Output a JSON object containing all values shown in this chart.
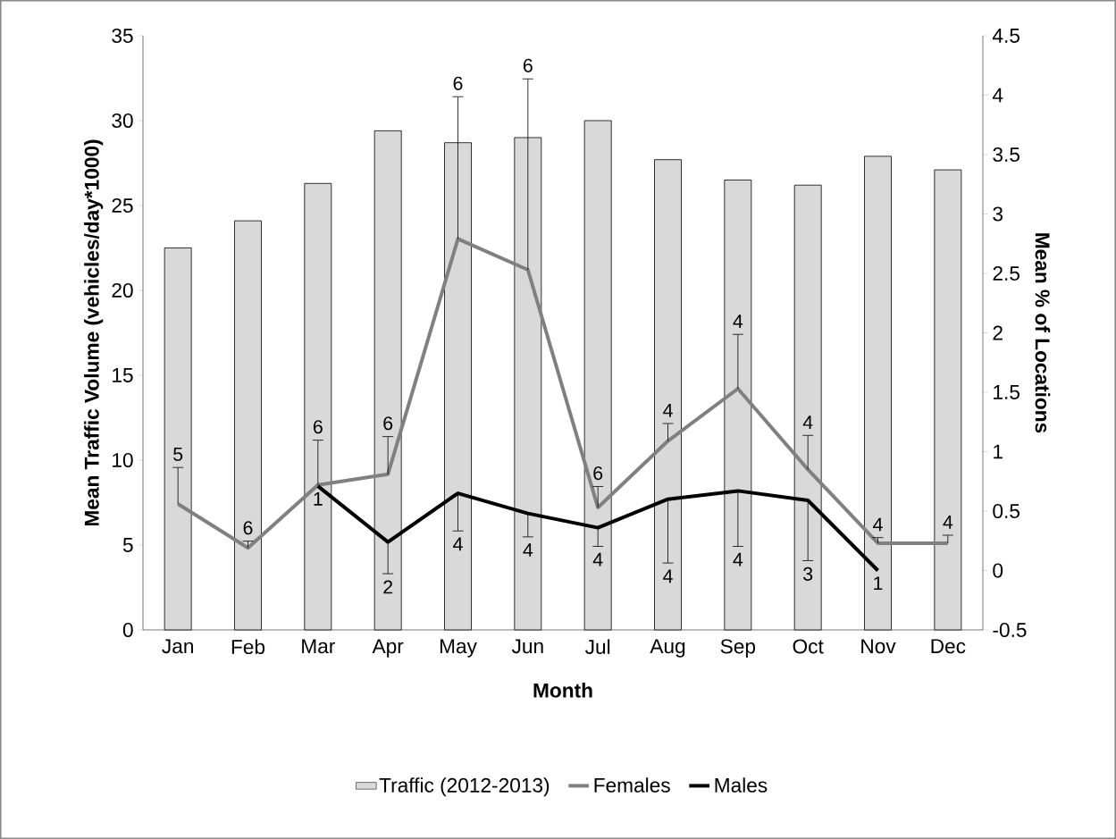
{
  "chart_data": {
    "type": "bar",
    "categories": [
      "Jan",
      "Feb",
      "Mar",
      "Apr",
      "May",
      "Jun",
      "Jul",
      "Aug",
      "Sep",
      "Oct",
      "Nov",
      "Dec"
    ],
    "xlabel": "Month",
    "ylabel": "Mean Traffic Volume (vehicles/day*1000)",
    "y2label": "Mean % of Locations",
    "ylim": [
      0,
      35
    ],
    "yticks": [
      0,
      5,
      10,
      15,
      20,
      25,
      30,
      35
    ],
    "y2lim": [
      -0.5,
      4.5
    ],
    "y2ticks": [
      -0.5,
      0,
      0.5,
      1,
      1.5,
      2,
      2.5,
      3,
      3.5,
      4,
      4.5
    ],
    "legend": "bottom",
    "series": [
      {
        "name": "Traffic (2012-2013)",
        "color": "#d9d9d9",
        "values": [
          22.5,
          24.1,
          26.3,
          29.4,
          28.7,
          29.0,
          30.0,
          27.7,
          26.5,
          26.2,
          27.9,
          27.1
        ]
      },
      {
        "name": "Females",
        "type": "line",
        "axis": "y2",
        "color": "#808080",
        "values": [
          0.56,
          0.19,
          0.72,
          0.81,
          2.79,
          2.53,
          0.53,
          1.09,
          1.53,
          0.85,
          0.23,
          0.23
        ],
        "errors": [
          [
            0.56,
            0.87
          ],
          [
            0.19,
            0.25
          ],
          [
            0.72,
            1.1
          ],
          [
            0.81,
            1.13
          ],
          [
            2.79,
            3.99
          ],
          [
            2.53,
            4.14
          ],
          [
            0.53,
            0.71
          ],
          [
            1.09,
            1.24
          ],
          [
            1.53,
            1.99
          ],
          [
            0.85,
            1.14
          ],
          [
            0.23,
            0.28
          ],
          [
            0.23,
            0.3
          ]
        ]
      },
      {
        "name": "Males",
        "type": "line",
        "axis": "y2",
        "color": "#000000",
        "values": [
          null,
          null,
          0.71,
          0.24,
          0.65,
          0.48,
          0.36,
          0.6,
          0.67,
          0.59,
          0.0,
          null
        ],
        "errors": [
          null,
          null,
          null,
          [
            -0.03,
            0.24
          ],
          [
            0.33,
            0.65
          ],
          [
            0.28,
            0.48
          ],
          [
            0.2,
            0.36
          ],
          [
            0.06,
            0.6
          ],
          [
            0.2,
            0.67
          ],
          [
            0.08,
            0.59
          ],
          null,
          null
        ]
      }
    ],
    "annotations": [
      "5",
      "6",
      "6",
      "6",
      "6",
      "6",
      "6",
      "4",
      "4",
      "4",
      "4",
      "4",
      "1",
      "2",
      "4",
      "4",
      "4",
      "4",
      "4",
      "3",
      "1"
    ]
  }
}
